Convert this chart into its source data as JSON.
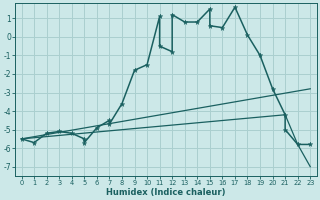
{
  "title": "",
  "xlabel": "Humidex (Indice chaleur)",
  "ylabel": "",
  "bg_color": "#cce8e8",
  "grid_color": "#aacfcf",
  "line_color": "#1a6060",
  "xlim": [
    -0.5,
    23.5
  ],
  "ylim": [
    -7.5,
    1.8
  ],
  "xticks": [
    0,
    1,
    2,
    3,
    4,
    5,
    6,
    7,
    8,
    9,
    10,
    11,
    12,
    13,
    14,
    15,
    16,
    17,
    18,
    19,
    20,
    21,
    22,
    23
  ],
  "yticks": [
    1,
    0,
    -1,
    -2,
    -3,
    -4,
    -5,
    -6,
    -7
  ],
  "main_x": [
    0,
    1,
    2,
    3,
    4,
    5,
    5,
    6,
    7,
    7,
    8,
    9,
    10,
    11,
    11,
    12,
    12,
    13,
    14,
    15,
    15,
    16,
    17,
    18,
    19,
    20,
    21,
    21,
    22,
    23
  ],
  "main_y": [
    -5.5,
    -5.7,
    -5.2,
    -5.1,
    -5.2,
    -5.5,
    -5.7,
    -4.9,
    -4.5,
    -4.7,
    -3.6,
    -1.8,
    -1.5,
    1.1,
    -0.5,
    -0.8,
    1.2,
    0.8,
    0.8,
    1.5,
    0.6,
    0.5,
    1.6,
    0.1,
    -1.0,
    -2.8,
    -4.2,
    -5.0,
    -5.8,
    -5.8
  ],
  "line1_x": [
    0,
    23
  ],
  "line1_y": [
    -5.5,
    -2.8
  ],
  "line2_x": [
    0,
    21,
    22,
    23
  ],
  "line2_y": [
    -5.5,
    -4.2,
    -5.8,
    -7.0
  ]
}
